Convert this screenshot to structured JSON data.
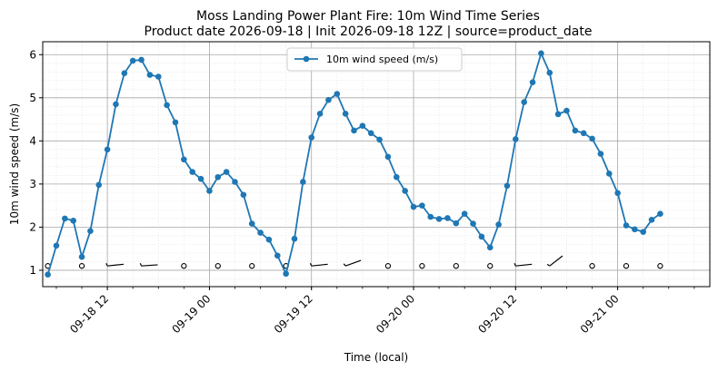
{
  "chart_data": {
    "type": "line",
    "title": "Moss Landing Power Plant Fire: 10m Wind Time Series",
    "subtitle": "Product date 2026-09-18 | Init 2026-09-18 12Z | source=product_date",
    "xlabel": "Time (local)",
    "ylabel": "10m wind speed (m/s)",
    "x_axis_type": "datetime",
    "xlim": [
      "2026-09-18 04:24",
      "2026-09-21 10:50"
    ],
    "ylim": [
      0.62,
      6.3
    ],
    "x_tick_labels": [
      "09-18 12",
      "09-19 00",
      "09-19 12",
      "09-20 00",
      "09-20 12",
      "09-21 00"
    ],
    "x_tick_values": [
      "2026-09-18 12:00",
      "2026-09-19 00:00",
      "2026-09-19 12:00",
      "2026-09-20 00:00",
      "2026-09-20 12:00",
      "2026-09-21 00:00"
    ],
    "y_ticks": [
      1,
      2,
      3,
      4,
      5,
      6
    ],
    "grid": true,
    "minor_grid": true,
    "legend": {
      "position": "upper-center",
      "entries": [
        "10m wind speed (m/s)"
      ]
    },
    "series": [
      {
        "name": "10m wind speed (m/s)",
        "color": "#1f77b4",
        "marker": "circle",
        "points": [
          [
            "2026-09-18 05:00",
            0.9
          ],
          [
            "2026-09-18 06:00",
            1.57
          ],
          [
            "2026-09-18 07:00",
            2.2
          ],
          [
            "2026-09-18 08:00",
            2.15
          ],
          [
            "2026-09-18 09:00",
            1.31
          ],
          [
            "2026-09-18 10:00",
            1.91
          ],
          [
            "2026-09-18 11:00",
            2.98
          ],
          [
            "2026-09-18 12:00",
            3.8
          ],
          [
            "2026-09-18 13:00",
            4.85
          ],
          [
            "2026-09-18 14:00",
            5.57
          ],
          [
            "2026-09-18 15:00",
            5.86
          ],
          [
            "2026-09-18 16:00",
            5.88
          ],
          [
            "2026-09-18 17:00",
            5.53
          ],
          [
            "2026-09-18 18:00",
            5.49
          ],
          [
            "2026-09-18 19:00",
            4.83
          ],
          [
            "2026-09-18 20:00",
            4.43
          ],
          [
            "2026-09-18 21:00",
            3.57
          ],
          [
            "2026-09-18 22:00",
            3.28
          ],
          [
            "2026-09-18 23:00",
            3.12
          ],
          [
            "2026-09-19 00:00",
            2.84
          ],
          [
            "2026-09-19 01:00",
            3.16
          ],
          [
            "2026-09-19 02:00",
            3.28
          ],
          [
            "2026-09-19 03:00",
            3.05
          ],
          [
            "2026-09-19 04:00",
            2.75
          ],
          [
            "2026-09-19 05:00",
            2.08
          ],
          [
            "2026-09-19 06:00",
            1.87
          ],
          [
            "2026-09-19 07:00",
            1.71
          ],
          [
            "2026-09-19 08:00",
            1.34
          ],
          [
            "2026-09-19 09:00",
            0.92
          ],
          [
            "2026-09-19 10:00",
            1.73
          ],
          [
            "2026-09-19 11:00",
            3.05
          ],
          [
            "2026-09-19 12:00",
            4.08
          ],
          [
            "2026-09-19 13:00",
            4.63
          ],
          [
            "2026-09-19 14:00",
            4.95
          ],
          [
            "2026-09-19 15:00",
            5.09
          ],
          [
            "2026-09-19 16:00",
            4.63
          ],
          [
            "2026-09-19 17:00",
            4.24
          ],
          [
            "2026-09-19 18:00",
            4.35
          ],
          [
            "2026-09-19 19:00",
            4.18
          ],
          [
            "2026-09-19 20:00",
            4.03
          ],
          [
            "2026-09-19 21:00",
            3.63
          ],
          [
            "2026-09-19 22:00",
            3.16
          ],
          [
            "2026-09-19 23:00",
            2.84
          ],
          [
            "2026-09-20 00:00",
            2.47
          ],
          [
            "2026-09-20 01:00",
            2.5
          ],
          [
            "2026-09-20 02:00",
            2.24
          ],
          [
            "2026-09-20 03:00",
            2.19
          ],
          [
            "2026-09-20 04:00",
            2.21
          ],
          [
            "2026-09-20 05:00",
            2.09
          ],
          [
            "2026-09-20 06:00",
            2.31
          ],
          [
            "2026-09-20 07:00",
            2.08
          ],
          [
            "2026-09-20 08:00",
            1.78
          ],
          [
            "2026-09-20 09:00",
            1.53
          ],
          [
            "2026-09-20 10:00",
            2.06
          ],
          [
            "2026-09-20 11:00",
            2.96
          ],
          [
            "2026-09-20 12:00",
            4.04
          ],
          [
            "2026-09-20 13:00",
            4.9
          ],
          [
            "2026-09-20 14:00",
            5.36
          ],
          [
            "2026-09-20 15:00",
            6.03
          ],
          [
            "2026-09-20 16:00",
            5.58
          ],
          [
            "2026-09-20 17:00",
            4.62
          ],
          [
            "2026-09-20 18:00",
            4.7
          ],
          [
            "2026-09-20 19:00",
            4.24
          ],
          [
            "2026-09-20 20:00",
            4.18
          ],
          [
            "2026-09-20 21:00",
            4.05
          ],
          [
            "2026-09-20 22:00",
            3.7
          ],
          [
            "2026-09-20 23:00",
            3.24
          ],
          [
            "2026-09-21 00:00",
            2.79
          ],
          [
            "2026-09-21 01:00",
            2.04
          ],
          [
            "2026-09-21 02:00",
            1.95
          ],
          [
            "2026-09-21 03:00",
            1.89
          ],
          [
            "2026-09-21 04:00",
            2.17
          ],
          [
            "2026-09-21 05:00",
            2.31
          ]
        ]
      }
    ],
    "wind_barbs": {
      "y": 1.1,
      "color": "#000000",
      "items": [
        [
          "2026-09-18 05:00",
          "calm",
          0
        ],
        [
          "2026-09-18 09:00",
          "calm",
          0
        ],
        [
          "2026-09-18 12:00",
          "barb",
          -6
        ],
        [
          "2026-09-18 16:00",
          "barb",
          -4
        ],
        [
          "2026-09-18 21:00",
          "calm",
          0
        ],
        [
          "2026-09-19 01:00",
          "calm",
          0
        ],
        [
          "2026-09-19 05:00",
          "calm",
          0
        ],
        [
          "2026-09-19 09:00",
          "calm",
          0
        ],
        [
          "2026-09-19 12:00",
          "barb",
          -6
        ],
        [
          "2026-09-19 16:00",
          "barb",
          -20
        ],
        [
          "2026-09-19 21:00",
          "calm",
          0
        ],
        [
          "2026-09-20 01:00",
          "calm",
          0
        ],
        [
          "2026-09-20 05:00",
          "calm",
          0
        ],
        [
          "2026-09-20 09:00",
          "calm",
          0
        ],
        [
          "2026-09-20 12:00",
          "barb",
          -6
        ],
        [
          "2026-09-20 16:00",
          "barb",
          -38
        ],
        [
          "2026-09-20 21:00",
          "calm",
          0
        ],
        [
          "2026-09-21 01:00",
          "calm",
          0
        ],
        [
          "2026-09-21 05:00",
          "calm",
          0
        ]
      ]
    }
  }
}
